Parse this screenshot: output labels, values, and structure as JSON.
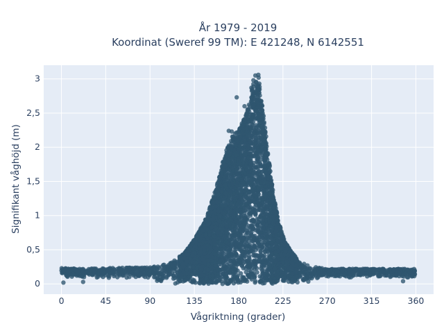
{
  "chart_data": {
    "type": "scatter",
    "title_lines": [
      "År 1979 - 2019",
      "Koordinat (Sweref 99 TM): E 421248, N 6142551"
    ],
    "xlabel": "Vågriktning (grader)",
    "ylabel": "Signifikant våghöjd (m)",
    "xlim": [
      -18,
      378
    ],
    "ylim": [
      -0.15,
      3.2
    ],
    "xticks": [
      0,
      45,
      90,
      135,
      180,
      225,
      270,
      315,
      360
    ],
    "xtick_labels": [
      "0",
      "45",
      "90",
      "135",
      "180",
      "225",
      "270",
      "315",
      "360"
    ],
    "yticks": [
      0,
      0.5,
      1,
      1.5,
      2,
      2.5,
      3
    ],
    "ytick_labels": [
      "0",
      "0,5",
      "1",
      "1,5",
      "2",
      "2,5",
      "3"
    ],
    "grid": true,
    "legend": "none",
    "colors": {
      "marker": "#2f5670",
      "plot_bg": "#e5ecf6",
      "grid": "#ffffff"
    },
    "envelope": {
      "x": [
        0,
        20,
        45,
        70,
        90,
        110,
        125,
        135,
        145,
        155,
        160,
        165,
        170,
        175,
        180,
        185,
        190,
        195,
        200,
        205,
        210,
        215,
        220,
        225,
        230,
        240,
        250,
        260,
        270,
        290,
        315,
        340,
        360
      ],
      "y": [
        0.23,
        0.22,
        0.23,
        0.24,
        0.24,
        0.3,
        0.45,
        0.65,
        0.9,
        1.3,
        1.55,
        1.85,
        2.05,
        2.2,
        2.25,
        2.4,
        2.6,
        2.95,
        3.05,
        2.5,
        1.9,
        1.35,
        0.95,
        0.7,
        0.55,
        0.35,
        0.28,
        0.24,
        0.22,
        0.22,
        0.22,
        0.22,
        0.22
      ]
    },
    "extreme_points": [
      {
        "x": 197,
        "y": 3.05
      },
      {
        "x": 200,
        "y": 3.06
      },
      {
        "x": 195,
        "y": 2.98
      },
      {
        "x": 193,
        "y": 2.87
      },
      {
        "x": 201,
        "y": 2.93
      },
      {
        "x": 178,
        "y": 2.73
      },
      {
        "x": 170,
        "y": 2.24
      },
      {
        "x": 173,
        "y": 2.23
      },
      {
        "x": 186,
        "y": 2.6
      },
      {
        "x": 2,
        "y": 0.02
      },
      {
        "x": 22,
        "y": 0.03
      },
      {
        "x": 347,
        "y": 0.04
      }
    ]
  }
}
